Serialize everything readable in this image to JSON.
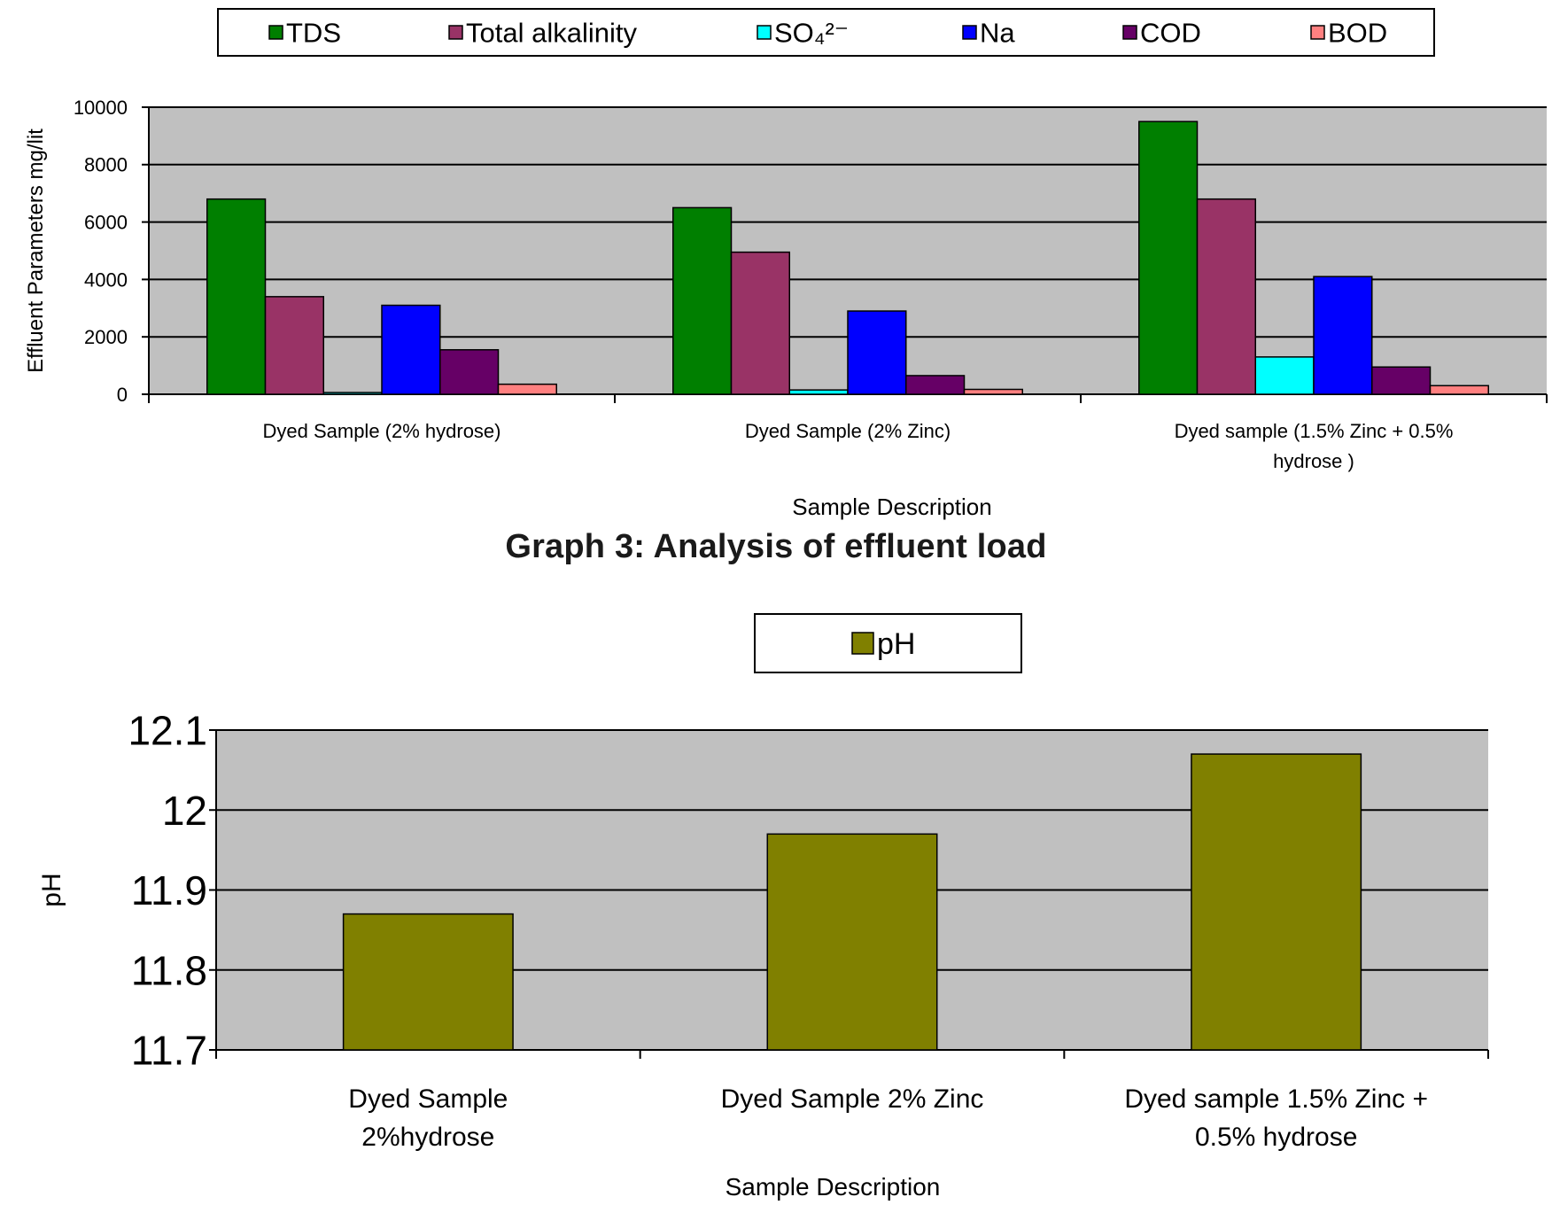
{
  "chart_data": [
    {
      "type": "bar",
      "title": "",
      "xlabel": "Sample Description",
      "ylabel": "Effluent Parameters mg/lit",
      "ylim": [
        0,
        10000
      ],
      "yticks": [
        "0",
        "2000",
        "4000",
        "6000",
        "8000",
        "10000"
      ],
      "grid": true,
      "legend": "top",
      "categories": [
        [
          "Dyed Sample  (2% hydrose)"
        ],
        [
          "Dyed Sample  (2% Zinc)"
        ],
        [
          "Dyed sample (1.5% Zinc +     0.5%",
          "hydrose )"
        ]
      ],
      "series": [
        {
          "name": "TDS",
          "color": "#007f00",
          "values": [
            6800,
            6500,
            9500
          ]
        },
        {
          "name": "Total alkalinity",
          "color": "#993366",
          "values": [
            3400,
            4950,
            6800
          ]
        },
        {
          "name": "SO₄²⁻",
          "color": "#00ffff",
          "values": [
            60,
            150,
            1300
          ]
        },
        {
          "name": "Na",
          "color": "#0000ff",
          "values": [
            3100,
            2900,
            4100
          ]
        },
        {
          "name": "COD",
          "color": "#660066",
          "values": [
            1550,
            650,
            950
          ]
        },
        {
          "name": "BOD",
          "color": "#ff8080",
          "values": [
            350,
            170,
            300
          ]
        }
      ]
    },
    {
      "type": "bar",
      "title": "",
      "xlabel": "Sample Description",
      "ylabel": "pH",
      "ylim": [
        11.7,
        12.1
      ],
      "yticks": [
        "11.7",
        "11.8",
        "11.9",
        "12",
        "12.1"
      ],
      "grid": true,
      "legend": "top",
      "categories": [
        [
          "Dyed Sample",
          "2%hydrose"
        ],
        [
          "Dyed Sample 2% Zinc"
        ],
        [
          "Dyed sample 1.5% Zinc +",
          "0.5% hydrose"
        ]
      ],
      "series": [
        {
          "name": "pH",
          "color": "#808000",
          "values": [
            11.87,
            11.97,
            12.07
          ]
        }
      ]
    }
  ],
  "caption": "Graph 3: Analysis of effluent load",
  "colors": {
    "plot_background": "#c0c0c0",
    "gridline": "#000000"
  }
}
